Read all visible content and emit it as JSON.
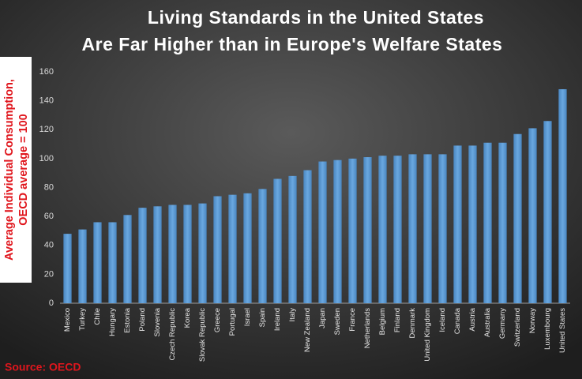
{
  "chart_data": {
    "type": "bar",
    "title": [
      "Living Standards in the United States",
      "Are Far Higher than in Europe's Welfare States"
    ],
    "ylabel": [
      "Average Individual Consumption,",
      "OECD average = 100"
    ],
    "source": "Source: OECD",
    "categories": [
      "Mexico",
      "Turkey",
      "Chile",
      "Hungary",
      "Estonia",
      "Poland",
      "Slovenia",
      "Czech Republic",
      "Korea",
      "Slovak Republic",
      "Greece",
      "Portugal",
      "Israel",
      "Spain",
      "Ireland",
      "Italy",
      "New Zealand",
      "Japan",
      "Sweden",
      "France",
      "Netherlands",
      "Belgium",
      "Finland",
      "Denmark",
      "United Kingdom",
      "Iceland",
      "Canada",
      "Austria",
      "Australia",
      "Germany",
      "Switzerland",
      "Norway",
      "Luxembourg",
      "United States"
    ],
    "values": [
      48,
      51,
      56,
      56,
      61,
      66,
      67,
      68,
      68,
      69,
      74,
      75,
      76,
      79,
      86,
      88,
      92,
      98,
      99,
      100,
      101,
      102,
      102,
      103,
      103,
      103,
      109,
      109,
      111,
      111,
      117,
      121,
      126,
      148
    ],
    "color": "#5b9bd5",
    "ylim": [
      0,
      160
    ],
    "yticks": [
      0,
      20,
      40,
      60,
      80,
      100,
      120,
      140,
      160
    ],
    "grid": false
  }
}
